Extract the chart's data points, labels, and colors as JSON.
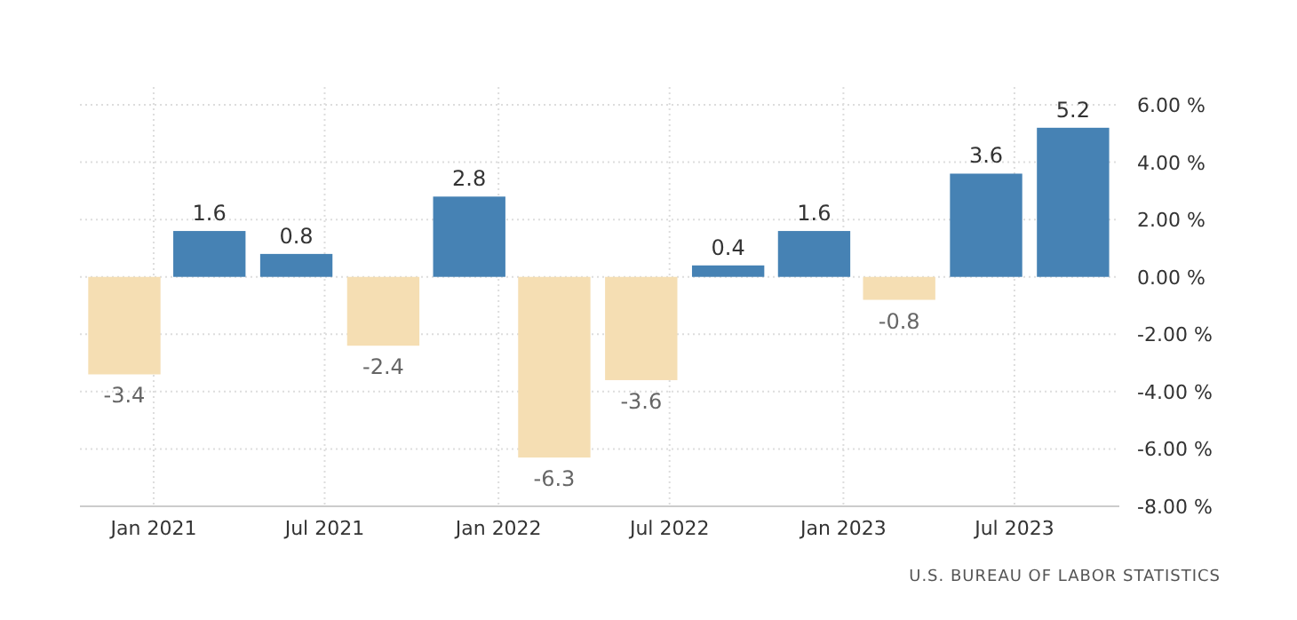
{
  "chart_data": {
    "type": "bar",
    "x": [
      "2020-12",
      "2021-03",
      "2021-06",
      "2021-09",
      "2021-12",
      "2022-03",
      "2022-06",
      "2022-09",
      "2022-12",
      "2023-03",
      "2023-06",
      "2023-09"
    ],
    "values": [
      -3.4,
      1.6,
      0.8,
      -2.4,
      2.8,
      -6.3,
      -3.6,
      0.4,
      1.6,
      -0.8,
      3.6,
      5.2
    ],
    "colors": [
      "#f5deb3",
      "#4682b4",
      "#4682b4",
      "#f5deb3",
      "#4682b4",
      "#f5deb3",
      "#f5deb3",
      "#4682b4",
      "#4682b4",
      "#f5deb3",
      "#4682b4",
      "#4682b4"
    ],
    "data_labels": true,
    "xlim": [
      "2020-10-15",
      "2023-10-20"
    ],
    "xticks": [
      {
        "value": "2021-01",
        "label": "Jan 2021"
      },
      {
        "value": "2021-07",
        "label": "Jul 2021"
      },
      {
        "value": "2022-01",
        "label": "Jan 2022"
      },
      {
        "value": "2022-07",
        "label": "Jul 2022"
      },
      {
        "value": "2023-01",
        "label": "Jan 2023"
      },
      {
        "value": "2023-07",
        "label": "Jul 2023"
      }
    ],
    "ylim": [
      -8,
      6
    ],
    "yticks": [
      {
        "value": 6,
        "label": "6.00 %"
      },
      {
        "value": 4,
        "label": "4.00 %"
      },
      {
        "value": 2,
        "label": "2.00 %"
      },
      {
        "value": 0,
        "label": "0.00 %"
      },
      {
        "value": -2,
        "label": "-2.00 %"
      },
      {
        "value": -4,
        "label": "-4.00 %"
      },
      {
        "value": -6,
        "label": "-6.00 %"
      },
      {
        "value": -8,
        "label": "-8.00 %"
      }
    ],
    "grid": true,
    "annotations": [
      "U.S. BUREAU OF LABOR STATISTICS"
    ]
  }
}
